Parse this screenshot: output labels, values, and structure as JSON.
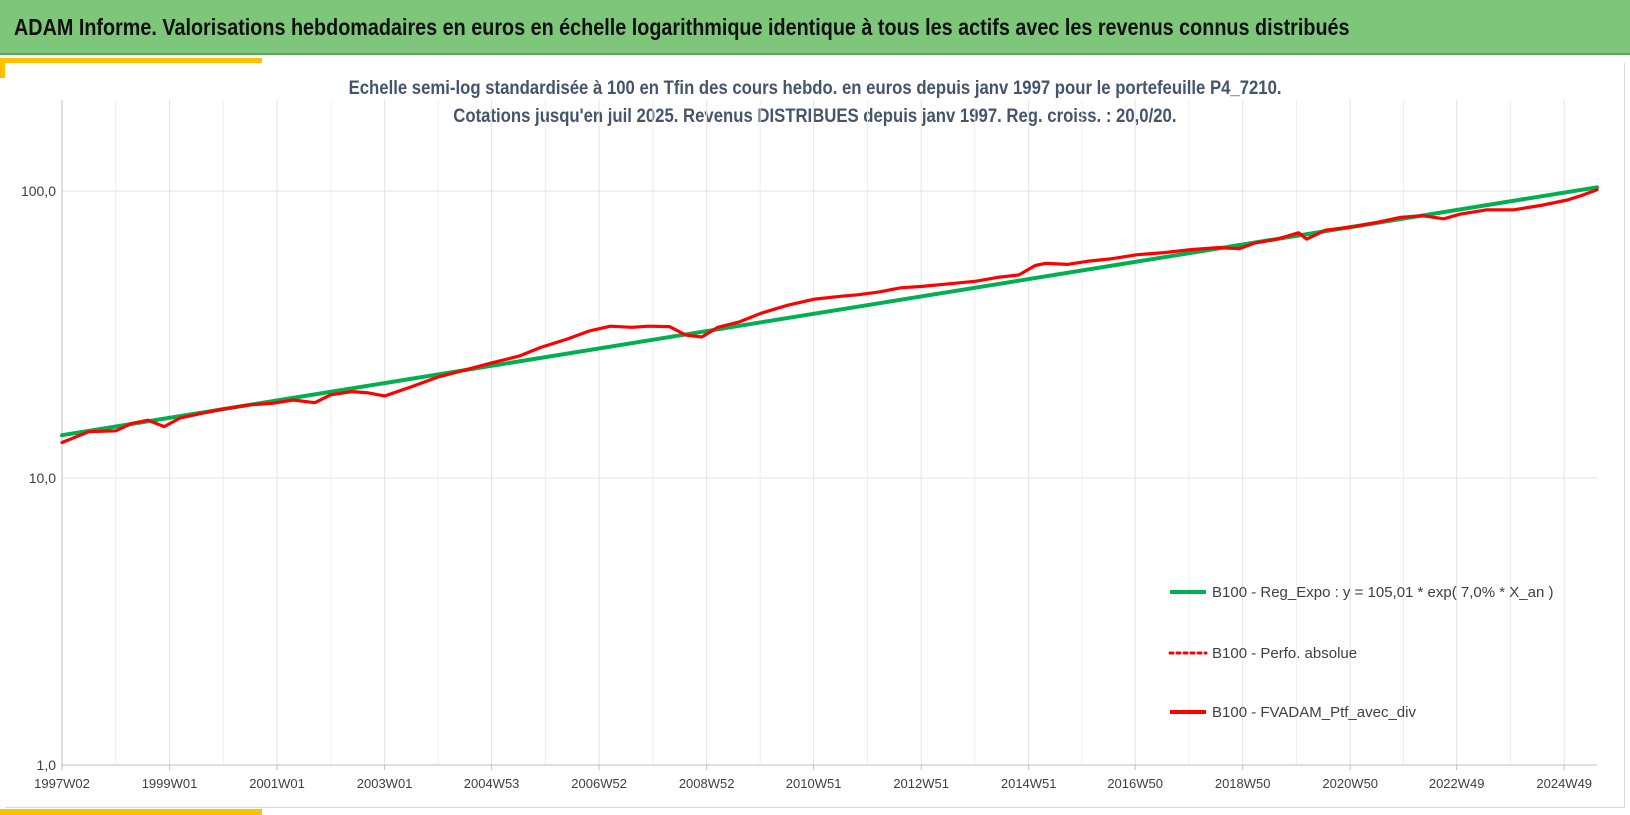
{
  "banner": {
    "title": "ADAM Informe. Valorisations hebdomadaires en euros en échelle logarithmique identique à tous les actifs avec les revenus connus distribués"
  },
  "chart_data": {
    "type": "line",
    "title": "Echelle semi-log standardisée  à 100 en Tfin des cours hebdo.  en euros depuis janv 1997 pour le portefeuille P4_7210.",
    "subtitle": "Cotations  jusqu'en juil 2025. Revenus DISTRIBUES depuis janv 1997. Reg. croiss. : 20,0/20.",
    "xlabel": "",
    "ylabel": "",
    "y_scale": "log",
    "ylim": [
      1,
      100
    ],
    "y_ticks": [
      1,
      10,
      100
    ],
    "y_tick_labels": [
      "1,0",
      "10,0",
      "100,0"
    ],
    "xlim": [
      1997.0,
      2025.55
    ],
    "x_ticks": [
      1997.0,
      1999.0,
      2001.0,
      2003.0,
      2004.99,
      2006.99,
      2008.99,
      2010.98,
      2012.98,
      2014.98,
      2016.96,
      2018.96,
      2020.96,
      2022.94,
      2024.94
    ],
    "x_tick_labels": [
      "1997W02",
      "1999W01",
      "2001W01",
      "2003W01",
      "2004W53",
      "2006W52",
      "2008W52",
      "2010W51",
      "2012W51",
      "2014W51",
      "2016W50",
      "2018W50",
      "2020W50",
      "2022W49",
      "2024W49"
    ],
    "grid": true,
    "legend_position": "bottom-right",
    "series": [
      {
        "name": "B100 - Reg_Expo : y = 105,01 * exp( 7,0% *  X_an )",
        "color": "#00b050",
        "style": "solid",
        "x": [
          1997.0,
          2025.55
        ],
        "y": [
          14.1,
          103.0
        ]
      },
      {
        "name": "B100 - Perfo. absolue",
        "color": "#ff0000",
        "style": "dotted",
        "x": [],
        "y": []
      },
      {
        "name": "B100 - FVADAM_Ptf_avec_div",
        "color": "#ff0000",
        "style": "solid",
        "x": [
          1997.0,
          1997.5,
          1998.0,
          1998.3,
          1998.6,
          1998.9,
          1999.2,
          1999.6,
          2000.0,
          2000.5,
          2000.9,
          2001.3,
          2001.7,
          2002.0,
          2002.4,
          2002.7,
          2003.0,
          2003.5,
          2004.0,
          2004.5,
          2005.0,
          2005.5,
          2005.9,
          2006.4,
          2006.8,
          2007.2,
          2007.6,
          2007.9,
          2008.3,
          2008.6,
          2008.9,
          2009.2,
          2009.6,
          2010.0,
          2010.5,
          2011.0,
          2011.5,
          2011.8,
          2012.2,
          2012.6,
          2013.0,
          2013.5,
          2014.0,
          2014.4,
          2014.8,
          2015.1,
          2015.3,
          2015.7,
          2016.1,
          2016.5,
          2017.0,
          2017.5,
          2018.0,
          2018.5,
          2018.9,
          2019.2,
          2019.6,
          2020.0,
          2020.15,
          2020.5,
          2021.0,
          2021.5,
          2021.9,
          2022.3,
          2022.7,
          2023.0,
          2023.5,
          2024.0,
          2024.5,
          2025.0,
          2025.3,
          2025.55
        ],
        "y": [
          13.3,
          14.5,
          14.6,
          15.5,
          15.9,
          15.1,
          16.2,
          16.8,
          17.4,
          18.0,
          18.2,
          18.7,
          18.3,
          19.5,
          20.0,
          19.8,
          19.3,
          20.8,
          22.5,
          23.8,
          25.2,
          26.6,
          28.5,
          30.5,
          32.5,
          33.8,
          33.5,
          33.8,
          33.7,
          31.5,
          31.0,
          33.5,
          35.0,
          37.5,
          40.0,
          42.0,
          43.0,
          43.5,
          44.5,
          46.0,
          46.5,
          47.5,
          48.5,
          50.0,
          51.0,
          55.0,
          56.0,
          55.5,
          57.0,
          58.0,
          60.0,
          61.0,
          62.5,
          63.5,
          63.0,
          66.0,
          68.0,
          71.5,
          68.0,
          73.0,
          75.0,
          78.0,
          81.0,
          82.0,
          80.0,
          83.0,
          86.0,
          86.0,
          89.0,
          93.0,
          97.0,
          101.0
        ]
      }
    ]
  }
}
